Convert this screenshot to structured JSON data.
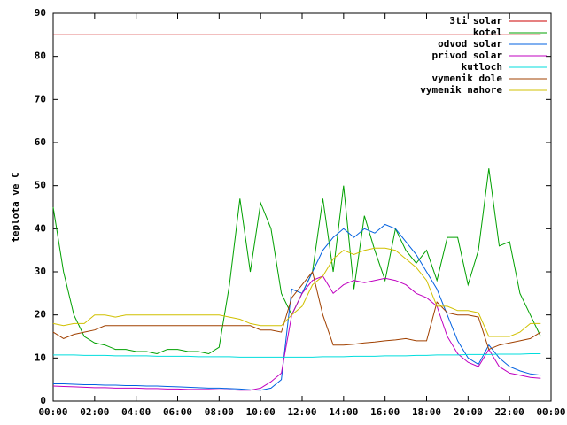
{
  "chart_data": {
    "type": "line",
    "ylabel": "teplota ve C",
    "x": [
      0,
      0.5,
      1,
      1.5,
      2,
      2.5,
      3,
      3.5,
      4,
      4.5,
      5,
      5.5,
      6,
      6.5,
      7,
      7.5,
      8,
      8.5,
      9,
      9.5,
      10,
      10.5,
      11,
      11.5,
      12,
      12.5,
      13,
      13.5,
      14,
      14.5,
      15,
      15.5,
      16,
      16.5,
      17,
      17.5,
      18,
      18.5,
      19,
      19.5,
      20,
      20.5,
      21,
      21.5,
      22,
      22.5,
      23,
      23.5
    ],
    "xlim": [
      0,
      24
    ],
    "xticks": [
      {
        "value": 0,
        "label": "00:00"
      },
      {
        "value": 2,
        "label": "02:00"
      },
      {
        "value": 4,
        "label": "04:00"
      },
      {
        "value": 6,
        "label": "06:00"
      },
      {
        "value": 8,
        "label": "08:00"
      },
      {
        "value": 10,
        "label": "10:00"
      },
      {
        "value": 12,
        "label": "12:00"
      },
      {
        "value": 14,
        "label": "14:00"
      },
      {
        "value": 16,
        "label": "16:00"
      },
      {
        "value": 18,
        "label": "18:00"
      },
      {
        "value": 20,
        "label": "20:00"
      },
      {
        "value": 22,
        "label": "22:00"
      },
      {
        "value": 24,
        "label": "00:00"
      }
    ],
    "ylim": [
      0,
      90
    ],
    "yticks": [
      0,
      10,
      20,
      30,
      40,
      50,
      60,
      70,
      80,
      90
    ],
    "legend": "top-right",
    "series": [
      {
        "name": "3ti solar",
        "color": "#cc0000",
        "values": [
          85,
          85,
          85,
          85,
          85,
          85,
          85,
          85,
          85,
          85,
          85,
          85,
          85,
          85,
          85,
          85,
          85,
          85,
          85,
          85,
          85,
          85,
          85,
          85,
          85,
          85,
          85,
          85,
          85,
          85,
          85,
          85,
          85,
          85,
          85,
          85,
          85,
          85,
          85,
          85,
          85,
          85,
          85,
          85,
          85,
          85,
          85,
          85
        ]
      },
      {
        "name": "kotel",
        "color": "#00a000",
        "values": [
          45,
          30,
          20,
          15,
          13.5,
          13,
          12,
          12,
          11.5,
          11.5,
          11,
          12,
          12,
          11.5,
          11.5,
          11,
          12.5,
          27,
          47,
          30,
          46,
          40,
          25,
          20,
          25,
          30,
          47,
          30,
          50,
          26,
          43,
          35,
          28,
          40,
          35,
          32,
          35,
          28,
          38,
          38,
          27,
          35,
          54,
          36,
          37,
          25,
          20,
          15
        ]
      },
      {
        "name": "odvod solar",
        "color": "#0060e0",
        "values": [
          4,
          4,
          3.9,
          3.8,
          3.8,
          3.7,
          3.7,
          3.6,
          3.6,
          3.5,
          3.5,
          3.4,
          3.3,
          3.2,
          3.1,
          3,
          3,
          2.9,
          2.8,
          2.6,
          2.5,
          3,
          5,
          26,
          25,
          30,
          35,
          38,
          40,
          38,
          40,
          39,
          41,
          40,
          37,
          34,
          30,
          26,
          20,
          14,
          10,
          8.5,
          13,
          10,
          8,
          7,
          6.3,
          6
        ]
      },
      {
        "name": "privod solar",
        "color": "#c000c0",
        "values": [
          3.5,
          3.4,
          3.3,
          3.2,
          3.1,
          3.1,
          3,
          3,
          3,
          2.9,
          2.9,
          2.8,
          2.8,
          2.7,
          2.7,
          2.7,
          2.6,
          2.6,
          2.5,
          2.5,
          3,
          4.5,
          6.5,
          20,
          25,
          28,
          29,
          25,
          27,
          28,
          27.5,
          28,
          28.5,
          28,
          27,
          25,
          24,
          22,
          15,
          11,
          9,
          8,
          12,
          8,
          6.5,
          6,
          5.5,
          5.3
        ]
      },
      {
        "name": "kutloch",
        "color": "#00dddd",
        "values": [
          10.7,
          10.7,
          10.7,
          10.6,
          10.6,
          10.6,
          10.5,
          10.5,
          10.5,
          10.5,
          10.4,
          10.4,
          10.4,
          10.4,
          10.3,
          10.3,
          10.3,
          10.3,
          10.2,
          10.2,
          10.2,
          10.2,
          10.2,
          10.2,
          10.2,
          10.2,
          10.3,
          10.3,
          10.3,
          10.4,
          10.4,
          10.4,
          10.5,
          10.5,
          10.5,
          10.6,
          10.6,
          10.7,
          10.7,
          10.7,
          10.8,
          10.8,
          10.8,
          10.9,
          10.9,
          10.9,
          11,
          11
        ]
      },
      {
        "name": "vymenik dole",
        "color": "#a04000",
        "values": [
          16,
          14.5,
          15.5,
          16,
          16.5,
          17.5,
          17.5,
          17.5,
          17.5,
          17.5,
          17.5,
          17.5,
          17.5,
          17.5,
          17.5,
          17.5,
          17.5,
          17.5,
          17.5,
          17.5,
          16.5,
          16.5,
          16,
          24,
          27,
          30,
          20,
          13,
          13,
          13.2,
          13.5,
          13.7,
          14,
          14.2,
          14.5,
          14,
          14,
          23,
          20.5,
          20,
          20,
          19.5,
          12,
          13,
          13.5,
          14,
          14.5,
          16
        ]
      },
      {
        "name": "vymenik nahore",
        "color": "#d0c000",
        "values": [
          18,
          17.5,
          18,
          18,
          20,
          20,
          19.5,
          20,
          20,
          20,
          20,
          20,
          20,
          20,
          20,
          20,
          20,
          19.5,
          19,
          18,
          17.5,
          17.5,
          17.5,
          20,
          22,
          27,
          29,
          33,
          35,
          34,
          35,
          35.5,
          35.5,
          35,
          33,
          31,
          28,
          22,
          22,
          21,
          21,
          20.5,
          15,
          15,
          15,
          16,
          18,
          18
        ]
      }
    ]
  }
}
